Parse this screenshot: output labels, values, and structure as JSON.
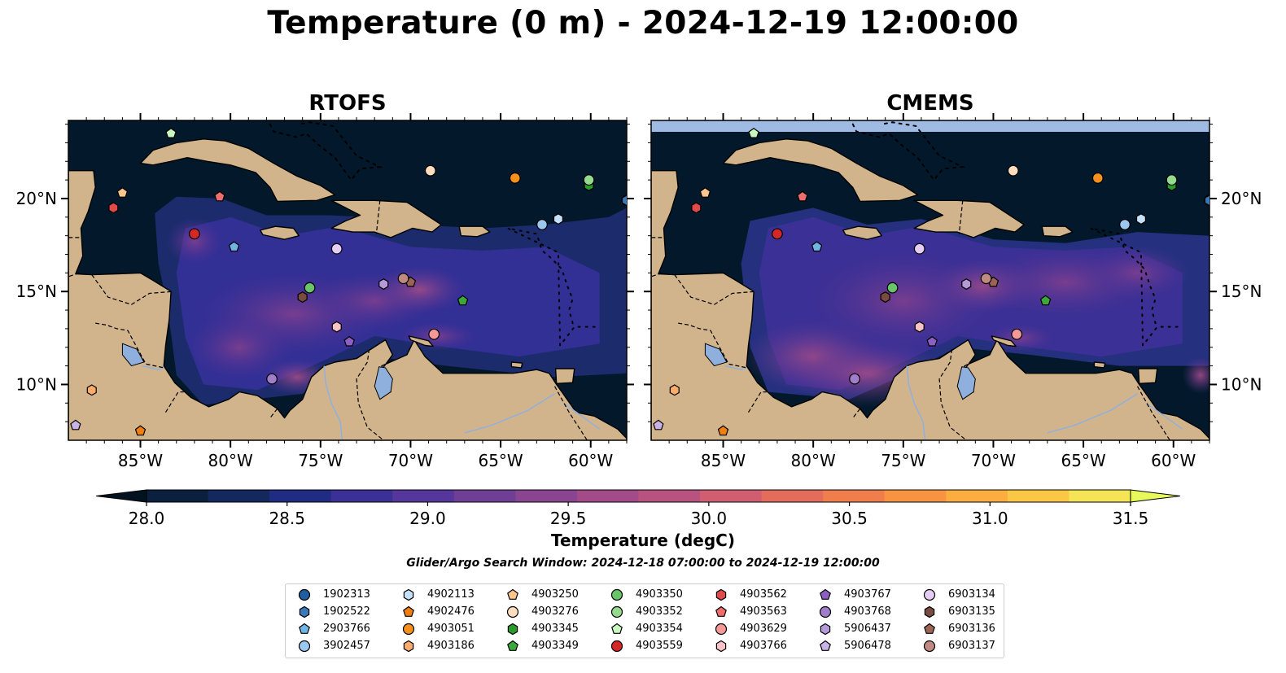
{
  "figure": {
    "title": "Temperature (0 m) - 2024-12-19 12:00:00",
    "search_window": "Glider/Argo Search Window: 2024-12-18 07:00:00 to 2024-12-19 12:00:00"
  },
  "panels": [
    {
      "title": "RTOFS"
    },
    {
      "title": "CMEMS"
    }
  ],
  "map_extent": {
    "lon_min": -89,
    "lon_max": -58,
    "lat_min": 7,
    "lat_max": 24.2
  },
  "axes": {
    "lon_ticks": [
      -85,
      -80,
      -75,
      -70,
      -65,
      -60
    ],
    "lon_tick_labels": [
      "85°W",
      "80°W",
      "75°W",
      "70°W",
      "65°W",
      "60°W"
    ],
    "lat_ticks": [
      10,
      15,
      20
    ],
    "lat_tick_labels": [
      "10°N",
      "15°N",
      "20°N"
    ]
  },
  "colorbar": {
    "label": "Temperature (degC)",
    "min": 28.0,
    "max": 31.5,
    "step": 0.25,
    "ticks": [
      28.0,
      28.5,
      29.0,
      29.5,
      30.0,
      30.5,
      31.0,
      31.5
    ],
    "tick_labels": [
      "28.0",
      "28.5",
      "29.0",
      "29.5",
      "30.0",
      "30.5",
      "31.0",
      "31.5"
    ],
    "colors": [
      "#03121f",
      "#0b1f3e",
      "#13295e",
      "#1f2c82",
      "#3a3096",
      "#55379b",
      "#6f3f96",
      "#8a4590",
      "#a24b88",
      "#b8537f",
      "#cf5f70",
      "#e36c5d",
      "#f07e4c",
      "#f79341",
      "#fbad3f",
      "#fbc846",
      "#f5e456",
      "#e8fa5b"
    ],
    "colors_extend": [
      "#03121f",
      "#e8fa5b"
    ]
  },
  "colors": {
    "ocean_dark": "#03192b",
    "land": "#d2b48c",
    "lake": "#8fb0dd",
    "cmems_nodata_strip": "#9fbbe4"
  },
  "platforms": [
    {
      "id": "1902313",
      "marker": "circle",
      "color": "#1f5f9f",
      "lon": -58.0,
      "lat": 19.9
    },
    {
      "id": "1902522",
      "marker": "hexagon",
      "color": "#3a78b8",
      "lon": -58.0,
      "lat": 19.9
    },
    {
      "id": "2903766",
      "marker": "pentagon",
      "color": "#6fb4e3",
      "lon": -79.8,
      "lat": 17.4
    },
    {
      "id": "3902457",
      "marker": "circle",
      "color": "#9cc8ee",
      "lon": -62.7,
      "lat": 18.6
    },
    {
      "id": "4902113",
      "marker": "hexagon",
      "color": "#c6e0f7",
      "lon": -61.8,
      "lat": 18.9
    },
    {
      "id": "4902476",
      "marker": "pentagon",
      "color": "#f07f12",
      "lon": -85.0,
      "lat": 7.5
    },
    {
      "id": "4903051",
      "marker": "circle",
      "color": "#f5901f",
      "lon": -64.2,
      "lat": 21.1
    },
    {
      "id": "4903186",
      "marker": "hexagon",
      "color": "#fbac6a",
      "lon": -87.7,
      "lat": 9.7
    },
    {
      "id": "4903250",
      "marker": "pentagon",
      "color": "#fcc58e",
      "lon": -86.0,
      "lat": 20.3
    },
    {
      "id": "4903276",
      "marker": "circle",
      "color": "#fddcbf",
      "lon": -68.9,
      "lat": 21.5
    },
    {
      "id": "4903345",
      "marker": "hexagon",
      "color": "#2a9a2a",
      "lon": -60.1,
      "lat": 20.7
    },
    {
      "id": "4903349",
      "marker": "pentagon",
      "color": "#3ca83c",
      "lon": -67.1,
      "lat": 14.5
    },
    {
      "id": "4903350",
      "marker": "circle",
      "color": "#6ac46a",
      "lon": -75.6,
      "lat": 15.2
    },
    {
      "id": "4903352",
      "marker": "circle",
      "color": "#95da8f",
      "lon": -60.1,
      "lat": 21.0
    },
    {
      "id": "4903354",
      "marker": "pentagon",
      "color": "#c9f7c0",
      "lon": -83.3,
      "lat": 23.5
    },
    {
      "id": "4903559",
      "marker": "circle",
      "color": "#d62728",
      "lon": -82.0,
      "lat": 18.1
    },
    {
      "id": "4903562",
      "marker": "hexagon",
      "color": "#e04a4a",
      "lon": -86.5,
      "lat": 19.5
    },
    {
      "id": "4903563",
      "marker": "pentagon",
      "color": "#ee6e6e",
      "lon": -80.6,
      "lat": 20.1
    },
    {
      "id": "4903629",
      "marker": "circle",
      "color": "#f59898",
      "lon": -68.7,
      "lat": 12.7
    },
    {
      "id": "4903766",
      "marker": "hexagon",
      "color": "#fac2c6",
      "lon": -74.1,
      "lat": 13.1
    },
    {
      "id": "4903767",
      "marker": "pentagon",
      "color": "#8c5fc0",
      "lon": -73.4,
      "lat": 12.3
    },
    {
      "id": "4903768",
      "marker": "circle",
      "color": "#a17ec9",
      "lon": -77.7,
      "lat": 10.3
    },
    {
      "id": "5906437",
      "marker": "hexagon",
      "color": "#b59ad8",
      "lon": -71.5,
      "lat": 15.4
    },
    {
      "id": "5906478",
      "marker": "pentagon",
      "color": "#c9b3e6",
      "lon": -88.6,
      "lat": 7.8
    },
    {
      "id": "6903134",
      "marker": "circle",
      "color": "#e5cdf5",
      "lon": -74.1,
      "lat": 17.3
    },
    {
      "id": "6903135",
      "marker": "hexagon",
      "color": "#7a4b3f",
      "lon": -76.0,
      "lat": 14.7
    },
    {
      "id": "6903136",
      "marker": "pentagon",
      "color": "#9c6456",
      "lon": -70.0,
      "lat": 15.5
    },
    {
      "id": "6903137",
      "marker": "circle",
      "color": "#bf8a80",
      "lon": -70.4,
      "lat": 15.7
    }
  ]
}
